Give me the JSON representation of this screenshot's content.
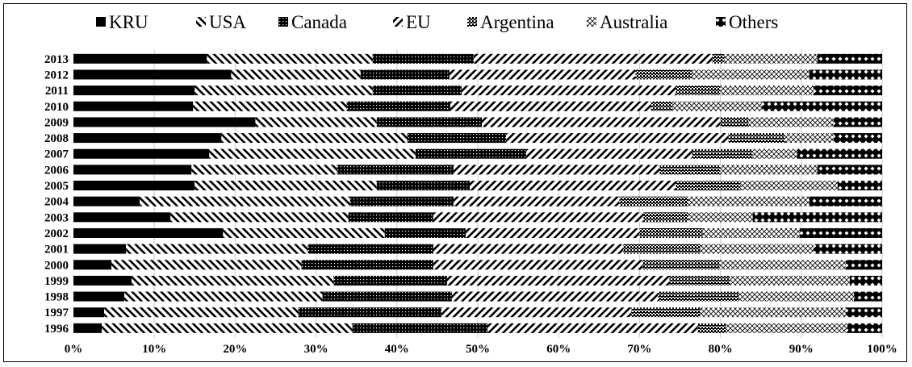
{
  "chart_data": {
    "type": "bar",
    "orientation": "horizontal",
    "stacked": "percent",
    "title": "",
    "xlabel": "",
    "ylabel": "",
    "xlim": [
      0,
      100
    ],
    "x_tick_labels": [
      "0%",
      "10%",
      "20%",
      "30%",
      "40%",
      "50%",
      "60%",
      "70%",
      "80%",
      "90%",
      "100%"
    ],
    "categories": [
      "2013",
      "2012",
      "2011",
      "2010",
      "2009",
      "2008",
      "2007",
      "2006",
      "2005",
      "2004",
      "2003",
      "2002",
      "2001",
      "2000",
      "1999",
      "1998",
      "1997",
      "1996"
    ],
    "grid": "vertical",
    "legend_position": "top",
    "series": [
      {
        "name": "KRU",
        "pattern": "solid",
        "values": [
          16.5,
          19.5,
          15,
          14.8,
          22.5,
          18.3,
          16.8,
          14.6,
          15,
          8.2,
          12,
          18.5,
          6.5,
          4.7,
          7.2,
          6.3,
          3.8,
          3.5
        ]
      },
      {
        "name": "USA",
        "pattern": "backslash",
        "values": [
          20.5,
          16,
          22,
          19,
          15,
          23,
          25.5,
          18,
          22.5,
          26,
          22,
          20,
          22.5,
          23.5,
          25,
          24.5,
          24,
          31
        ]
      },
      {
        "name": "Canada",
        "pattern": "dense",
        "values": [
          12.5,
          11,
          11,
          12.8,
          13,
          12.2,
          13.7,
          14.4,
          11.5,
          12.8,
          10.5,
          10,
          15.5,
          16.3,
          14,
          16,
          17.7,
          16.7
        ]
      },
      {
        "name": "EU",
        "pattern": "slash",
        "values": [
          29.5,
          23,
          26.5,
          24.8,
          29.5,
          27.5,
          20.5,
          25.5,
          25.5,
          20.5,
          26,
          21.5,
          23.5,
          25.9,
          27.5,
          25.5,
          23.5,
          26
        ]
      },
      {
        "name": "Argentina",
        "pattern": "checker",
        "values": [
          1.5,
          7,
          5.5,
          2.7,
          3.5,
          7,
          7.5,
          7.5,
          8,
          8.5,
          5.5,
          7.8,
          9.5,
          9.5,
          7.5,
          10,
          8.5,
          3.5
        ]
      },
      {
        "name": "Australia",
        "pattern": "crosshatch",
        "values": [
          11.5,
          14.5,
          11.5,
          11,
          10.5,
          6,
          5.5,
          12,
          12,
          15,
          8,
          12,
          14,
          15.6,
          14.8,
          14.2,
          18,
          15
        ]
      },
      {
        "name": "Others",
        "pattern": "diamond",
        "values": [
          8,
          9,
          8.5,
          14.9,
          6,
          6,
          10.5,
          8,
          5.5,
          9,
          16,
          10.2,
          8.5,
          4.5,
          4,
          3.5,
          4.5,
          4.3
        ]
      }
    ]
  }
}
